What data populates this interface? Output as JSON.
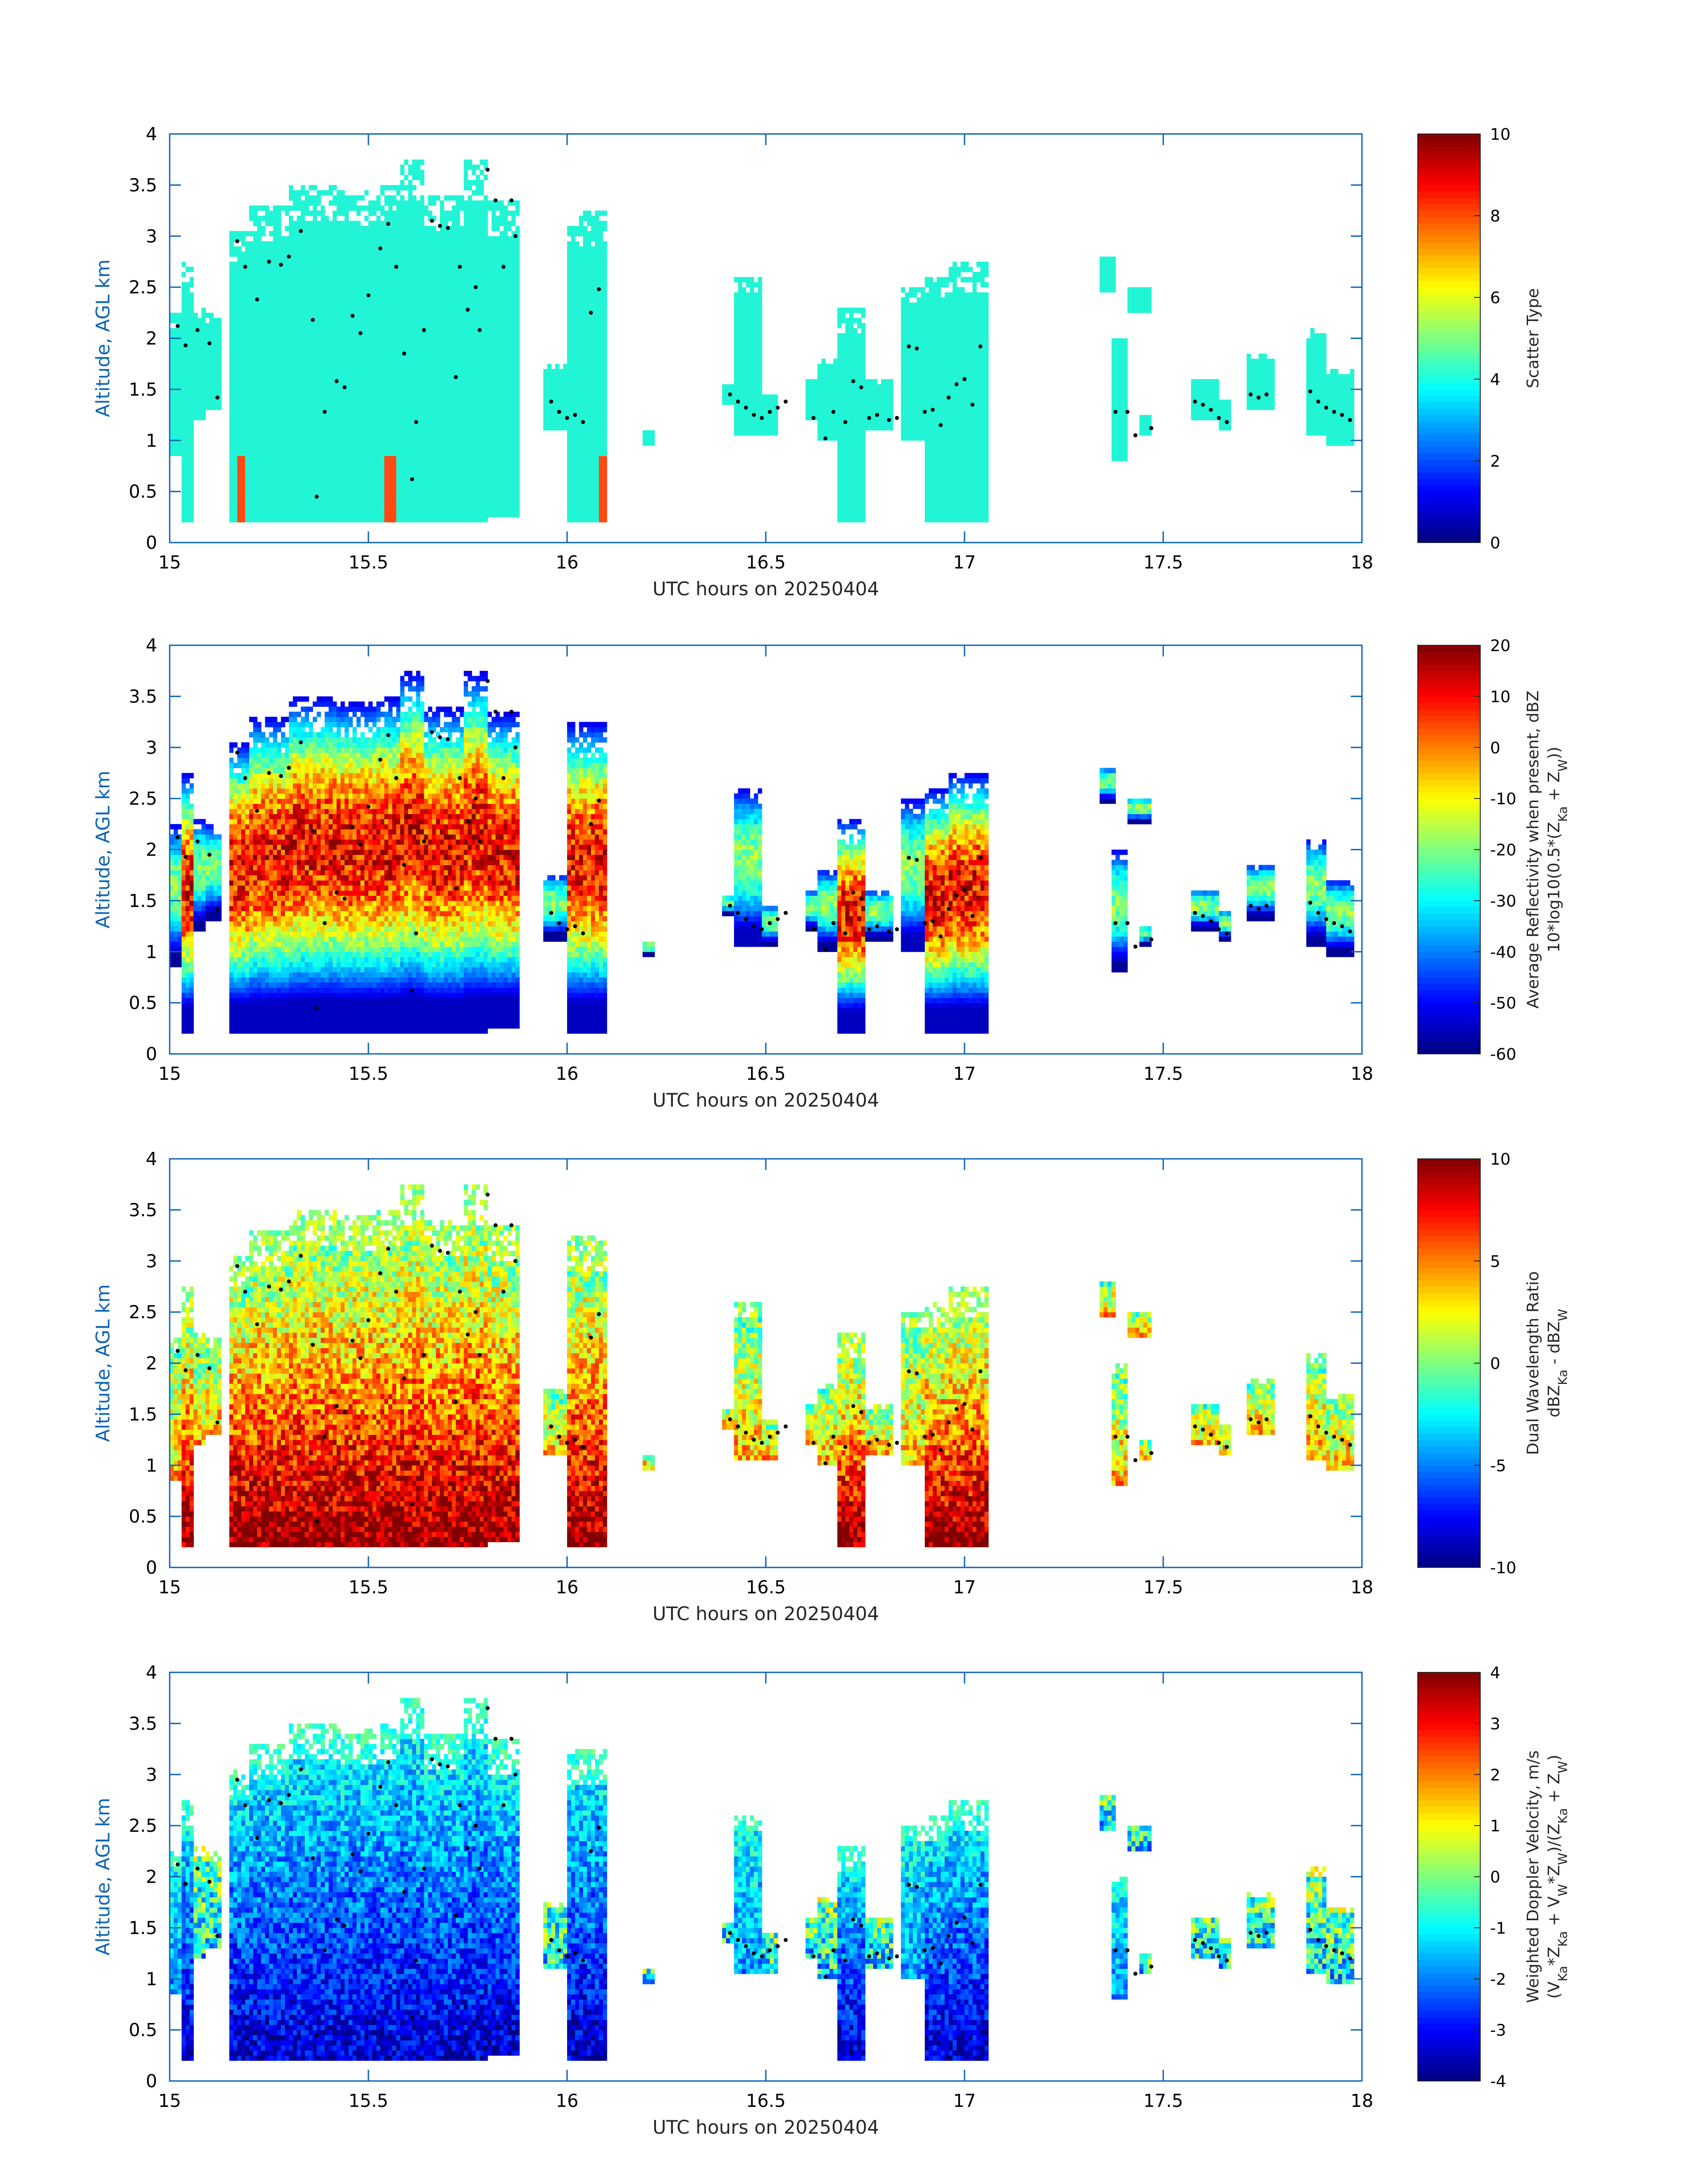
{
  "accent_axis_color": "#0b63b8",
  "colormap": "jet",
  "chart_data": [
    {
      "type": "heatmap",
      "xlabel": "UTC hours on 20250404",
      "ylabel": "Altitude, AGL km",
      "xlim": [
        15,
        18
      ],
      "ylim": [
        0,
        4
      ],
      "xticks": [
        "15",
        "15.5",
        "16",
        "16.5",
        "17",
        "17.5",
        "18"
      ],
      "yticks": [
        "0",
        "0.5",
        "1",
        "1.5",
        "2",
        "2.5",
        "3",
        "3.5",
        "4"
      ],
      "colorbar": {
        "label": "Scatter Type",
        "label2": "",
        "range": [
          0,
          10
        ],
        "ticks": [
          "0",
          "2",
          "4",
          "6",
          "8",
          "10"
        ]
      },
      "mode": "scatter"
    },
    {
      "type": "heatmap",
      "xlabel": "UTC hours on 20250404",
      "ylabel": "Altitude, AGL km",
      "xlim": [
        15,
        18
      ],
      "ylim": [
        0,
        4
      ],
      "xticks": [
        "15",
        "15.5",
        "16",
        "16.5",
        "17",
        "17.5",
        "18"
      ],
      "yticks": [
        "0",
        "0.5",
        "1",
        "1.5",
        "2",
        "2.5",
        "3",
        "3.5",
        "4"
      ],
      "colorbar": {
        "label": "Average Reflectivity when present, dBZ",
        "label2": "10*log10(0.5*(Z_Ka + Z_W))",
        "range": [
          -60,
          20
        ],
        "ticks": [
          "-60",
          "-50",
          "-40",
          "-30",
          "-20",
          "-10",
          "0",
          "10",
          "20"
        ]
      },
      "mode": "refl"
    },
    {
      "type": "heatmap",
      "xlabel": "UTC hours on 20250404",
      "ylabel": "Altitude, AGL km",
      "xlim": [
        15,
        18
      ],
      "ylim": [
        0,
        4
      ],
      "xticks": [
        "15",
        "15.5",
        "16",
        "16.5",
        "17",
        "17.5",
        "18"
      ],
      "yticks": [
        "0",
        "0.5",
        "1",
        "1.5",
        "2",
        "2.5",
        "3",
        "3.5",
        "4"
      ],
      "colorbar": {
        "label": "Dual Wavelength Ratio",
        "label2": "dBZ_Ka - dBZ_W",
        "range": [
          -10,
          10
        ],
        "ticks": [
          "-10",
          "-5",
          "0",
          "5",
          "10"
        ]
      },
      "mode": "dwr"
    },
    {
      "type": "heatmap",
      "xlabel": "UTC hours on 20250404",
      "ylabel": "Altitude, AGL km",
      "xlim": [
        15,
        18
      ],
      "ylim": [
        0,
        4
      ],
      "xticks": [
        "15",
        "15.5",
        "16",
        "16.5",
        "17",
        "17.5",
        "18"
      ],
      "yticks": [
        "0",
        "0.5",
        "1",
        "1.5",
        "2",
        "2.5",
        "3",
        "3.5",
        "4"
      ],
      "colorbar": {
        "label": "Weighted Doppler Velocity, m/s",
        "label2": "(V_Ka*Z_Ka + V_W*Z_W)/(Z_Ka + Z_W)",
        "range": [
          -4,
          4
        ],
        "ticks": [
          "-4",
          "-3",
          "-2",
          "-1",
          "0",
          "1",
          "2",
          "3",
          "4"
        ]
      },
      "mode": "vel"
    }
  ],
  "echo_columns": [
    {
      "t0": 15.0,
      "t1": 15.03,
      "bot": 0.85,
      "top": 2.25
    },
    {
      "t0": 15.03,
      "t1": 15.06,
      "bot": 0.2,
      "top": 2.75
    },
    {
      "t0": 15.06,
      "t1": 15.09,
      "bot": 1.2,
      "top": 2.3
    },
    {
      "t0": 15.09,
      "t1": 15.13,
      "bot": 1.3,
      "top": 2.25
    },
    {
      "t0": 15.15,
      "t1": 15.2,
      "bot": 0.2,
      "top": 3.05
    },
    {
      "t0": 15.2,
      "t1": 15.3,
      "bot": 0.2,
      "top": 3.3
    },
    {
      "t0": 15.3,
      "t1": 15.42,
      "bot": 0.2,
      "top": 3.5
    },
    {
      "t0": 15.42,
      "t1": 15.52,
      "bot": 0.2,
      "top": 3.45
    },
    {
      "t0": 15.52,
      "t1": 15.58,
      "bot": 0.2,
      "top": 3.5
    },
    {
      "t0": 15.58,
      "t1": 15.64,
      "bot": 0.2,
      "top": 3.75
    },
    {
      "t0": 15.64,
      "t1": 15.74,
      "bot": 0.2,
      "top": 3.4
    },
    {
      "t0": 15.74,
      "t1": 15.8,
      "bot": 0.2,
      "top": 3.75
    },
    {
      "t0": 15.8,
      "t1": 15.88,
      "bot": 0.25,
      "top": 3.35
    },
    {
      "t0": 15.94,
      "t1": 16.0,
      "bot": 1.1,
      "top": 1.75
    },
    {
      "t0": 16.0,
      "t1": 16.1,
      "bot": 0.2,
      "top": 3.25
    },
    {
      "t0": 16.19,
      "t1": 16.22,
      "bot": 0.95,
      "top": 1.1
    },
    {
      "t0": 16.39,
      "t1": 16.42,
      "bot": 1.35,
      "top": 1.55
    },
    {
      "t0": 16.42,
      "t1": 16.49,
      "bot": 1.05,
      "top": 2.6
    },
    {
      "t0": 16.49,
      "t1": 16.53,
      "bot": 1.05,
      "top": 1.45
    },
    {
      "t0": 16.6,
      "t1": 16.63,
      "bot": 1.2,
      "top": 1.6
    },
    {
      "t0": 16.63,
      "t1": 16.68,
      "bot": 1.0,
      "top": 1.8
    },
    {
      "t0": 16.68,
      "t1": 16.75,
      "bot": 0.2,
      "top": 2.3
    },
    {
      "t0": 16.75,
      "t1": 16.82,
      "bot": 1.1,
      "top": 1.6
    },
    {
      "t0": 16.84,
      "t1": 16.9,
      "bot": 1.0,
      "top": 2.5
    },
    {
      "t0": 16.9,
      "t1": 16.96,
      "bot": 0.2,
      "top": 2.6
    },
    {
      "t0": 16.96,
      "t1": 17.06,
      "bot": 0.2,
      "top": 2.75
    },
    {
      "t0": 17.34,
      "t1": 17.38,
      "bot": 2.45,
      "top": 2.8
    },
    {
      "t0": 17.37,
      "t1": 17.41,
      "bot": 0.8,
      "top": 2.0
    },
    {
      "t0": 17.41,
      "t1": 17.47,
      "bot": 2.25,
      "top": 2.5
    },
    {
      "t0": 17.44,
      "t1": 17.47,
      "bot": 1.05,
      "top": 1.25
    },
    {
      "t0": 17.57,
      "t1": 17.64,
      "bot": 1.2,
      "top": 1.6
    },
    {
      "t0": 17.64,
      "t1": 17.67,
      "bot": 1.1,
      "top": 1.4
    },
    {
      "t0": 17.71,
      "t1": 17.78,
      "bot": 1.3,
      "top": 1.85
    },
    {
      "t0": 17.86,
      "t1": 17.91,
      "bot": 1.05,
      "top": 2.1
    },
    {
      "t0": 17.91,
      "t1": 17.98,
      "bot": 0.95,
      "top": 1.7
    }
  ],
  "melting_layer_points": [
    [
      15.02,
      2.12
    ],
    [
      15.04,
      1.93
    ],
    [
      15.07,
      2.08
    ],
    [
      15.1,
      1.95
    ],
    [
      15.12,
      1.42
    ],
    [
      15.17,
      2.95
    ],
    [
      15.19,
      2.7
    ],
    [
      15.22,
      2.38
    ],
    [
      15.25,
      2.75
    ],
    [
      15.28,
      2.72
    ],
    [
      15.3,
      2.8
    ],
    [
      15.33,
      3.05
    ],
    [
      15.36,
      2.18
    ],
    [
      15.37,
      0.45
    ],
    [
      15.39,
      1.28
    ],
    [
      15.42,
      1.58
    ],
    [
      15.44,
      1.52
    ],
    [
      15.46,
      2.22
    ],
    [
      15.48,
      2.05
    ],
    [
      15.5,
      2.42
    ],
    [
      15.53,
      2.88
    ],
    [
      15.55,
      3.12
    ],
    [
      15.57,
      2.7
    ],
    [
      15.59,
      1.85
    ],
    [
      15.61,
      0.62
    ],
    [
      15.62,
      1.18
    ],
    [
      15.64,
      2.08
    ],
    [
      15.66,
      3.15
    ],
    [
      15.68,
      3.1
    ],
    [
      15.7,
      3.08
    ],
    [
      15.72,
      1.62
    ],
    [
      15.73,
      2.7
    ],
    [
      15.75,
      2.28
    ],
    [
      15.77,
      2.5
    ],
    [
      15.78,
      2.08
    ],
    [
      15.8,
      3.65
    ],
    [
      15.82,
      3.35
    ],
    [
      15.84,
      2.7
    ],
    [
      15.86,
      3.35
    ],
    [
      15.87,
      3.0
    ],
    [
      15.96,
      1.38
    ],
    [
      15.98,
      1.28
    ],
    [
      16.0,
      1.22
    ],
    [
      16.02,
      1.25
    ],
    [
      16.04,
      1.18
    ],
    [
      16.06,
      2.25
    ],
    [
      16.08,
      2.48
    ],
    [
      16.41,
      1.45
    ],
    [
      16.43,
      1.38
    ],
    [
      16.45,
      1.32
    ],
    [
      16.47,
      1.25
    ],
    [
      16.49,
      1.22
    ],
    [
      16.51,
      1.28
    ],
    [
      16.53,
      1.32
    ],
    [
      16.55,
      1.38
    ],
    [
      16.62,
      1.22
    ],
    [
      16.65,
      1.02
    ],
    [
      16.67,
      1.28
    ],
    [
      16.7,
      1.18
    ],
    [
      16.72,
      1.58
    ],
    [
      16.74,
      1.52
    ],
    [
      16.76,
      1.22
    ],
    [
      16.78,
      1.25
    ],
    [
      16.81,
      1.2
    ],
    [
      16.83,
      1.22
    ],
    [
      16.86,
      1.92
    ],
    [
      16.88,
      1.9
    ],
    [
      16.9,
      1.28
    ],
    [
      16.92,
      1.3
    ],
    [
      16.94,
      1.15
    ],
    [
      16.96,
      1.42
    ],
    [
      16.98,
      1.55
    ],
    [
      17.0,
      1.6
    ],
    [
      17.02,
      1.35
    ],
    [
      17.04,
      1.92
    ],
    [
      17.38,
      1.28
    ],
    [
      17.41,
      1.28
    ],
    [
      17.43,
      1.05
    ],
    [
      17.47,
      1.12
    ],
    [
      17.58,
      1.38
    ],
    [
      17.6,
      1.35
    ],
    [
      17.62,
      1.3
    ],
    [
      17.64,
      1.22
    ],
    [
      17.66,
      1.18
    ],
    [
      17.72,
      1.45
    ],
    [
      17.74,
      1.42
    ],
    [
      17.76,
      1.45
    ],
    [
      17.87,
      1.48
    ],
    [
      17.89,
      1.38
    ],
    [
      17.91,
      1.32
    ],
    [
      17.93,
      1.28
    ],
    [
      17.95,
      1.25
    ],
    [
      17.97,
      1.2
    ]
  ]
}
